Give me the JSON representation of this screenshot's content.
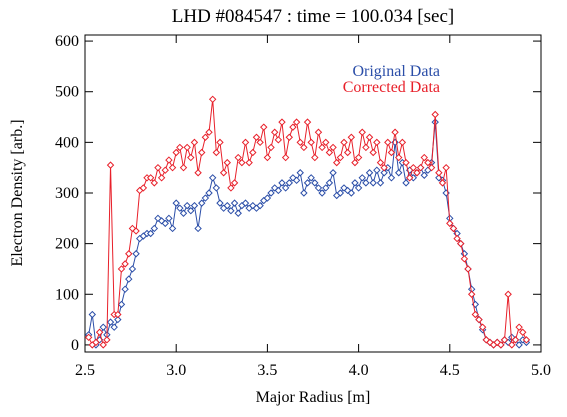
{
  "chart_data": {
    "type": "line",
    "title": "LHD #084547 : time = 100.034 [sec]",
    "x_label": "Major Radius [m]",
    "y_label": "Electron Density [arb.]",
    "xlim": [
      2.5,
      5.0
    ],
    "ylim": [
      -14,
      612
    ],
    "xticks": [
      {
        "value": 2.5,
        "label": "2.5"
      },
      {
        "value": 3.0,
        "label": "3.0"
      },
      {
        "value": 3.5,
        "label": "3.5"
      },
      {
        "value": 4.0,
        "label": "4.0"
      },
      {
        "value": 4.5,
        "label": "4.5"
      },
      {
        "value": 5.0,
        "label": "5.0"
      }
    ],
    "yticks": [
      0,
      100,
      200,
      300,
      400,
      500,
      600
    ],
    "x": [
      2.52,
      2.54,
      2.56,
      2.58,
      2.6,
      2.62,
      2.64,
      2.66,
      2.68,
      2.7,
      2.72,
      2.74,
      2.76,
      2.78,
      2.8,
      2.82,
      2.84,
      2.86,
      2.88,
      2.9,
      2.92,
      2.94,
      2.96,
      2.98,
      3.0,
      3.02,
      3.04,
      3.06,
      3.08,
      3.1,
      3.12,
      3.14,
      3.16,
      3.18,
      3.2,
      3.22,
      3.24,
      3.26,
      3.28,
      3.3,
      3.32,
      3.34,
      3.36,
      3.38,
      3.4,
      3.42,
      3.44,
      3.46,
      3.48,
      3.5,
      3.52,
      3.54,
      3.56,
      3.58,
      3.6,
      3.62,
      3.64,
      3.66,
      3.68,
      3.7,
      3.72,
      3.74,
      3.76,
      3.78,
      3.8,
      3.82,
      3.84,
      3.86,
      3.88,
      3.9,
      3.92,
      3.94,
      3.96,
      3.98,
      4.0,
      4.02,
      4.04,
      4.06,
      4.08,
      4.1,
      4.12,
      4.14,
      4.16,
      4.18,
      4.2,
      4.22,
      4.24,
      4.26,
      4.28,
      4.3,
      4.32,
      4.34,
      4.36,
      4.38,
      4.4,
      4.42,
      4.44,
      4.46,
      4.48,
      4.5,
      4.52,
      4.54,
      4.56,
      4.58,
      4.6,
      4.62,
      4.64,
      4.66,
      4.68,
      4.7,
      4.72,
      4.74,
      4.76,
      4.78,
      4.8,
      4.82,
      4.84,
      4.86,
      4.88,
      4.9,
      4.92
    ],
    "series": [
      {
        "name": "Original Data",
        "color": "#2b4ea8",
        "values": [
          20,
          60,
          0,
          10,
          35,
          20,
          45,
          35,
          50,
          80,
          110,
          130,
          150,
          180,
          210,
          215,
          220,
          220,
          230,
          250,
          245,
          240,
          250,
          230,
          280,
          270,
          260,
          275,
          265,
          275,
          230,
          280,
          290,
          300,
          330,
          310,
          280,
          270,
          275,
          265,
          280,
          260,
          275,
          280,
          270,
          275,
          270,
          275,
          285,
          290,
          300,
          310,
          305,
          320,
          310,
          320,
          330,
          325,
          340,
          300,
          320,
          330,
          320,
          310,
          300,
          310,
          320,
          340,
          295,
          300,
          310,
          305,
          300,
          320,
          310,
          330,
          320,
          340,
          320,
          345,
          320,
          340,
          350,
          330,
          400,
          340,
          360,
          320,
          345,
          330,
          340,
          350,
          335,
          345,
          360,
          440,
          330,
          325,
          300,
          250,
          230,
          220,
          200,
          180,
          150,
          110,
          80,
          50,
          30,
          10,
          5,
          0,
          5,
          0,
          10,
          5,
          15,
          10,
          0,
          10,
          5
        ]
      },
      {
        "name": "Corrected Data",
        "color": "#e8202a",
        "values": [
          15,
          0,
          5,
          25,
          0,
          10,
          355,
          60,
          60,
          150,
          160,
          180,
          230,
          225,
          305,
          310,
          330,
          330,
          320,
          350,
          330,
          345,
          365,
          350,
          380,
          390,
          350,
          390,
          370,
          400,
          340,
          380,
          410,
          420,
          485,
          380,
          400,
          340,
          360,
          310,
          320,
          370,
          360,
          400,
          360,
          380,
          410,
          400,
          430,
          370,
          390,
          420,
          405,
          440,
          370,
          410,
          430,
          440,
          400,
          390,
          440,
          400,
          370,
          420,
          390,
          400,
          380,
          390,
          360,
          370,
          400,
          380,
          410,
          360,
          370,
          420,
          390,
          410,
          380,
          400,
          360,
          350,
          400,
          380,
          420,
          370,
          400,
          360,
          330,
          350,
          340,
          350,
          370,
          360,
          350,
          455,
          340,
          320,
          350,
          240,
          230,
          210,
          200,
          170,
          150,
          100,
          60,
          50,
          35,
          10,
          5,
          0,
          5,
          0,
          10,
          100,
          0,
          10,
          35,
          25,
          10
        ]
      }
    ]
  }
}
